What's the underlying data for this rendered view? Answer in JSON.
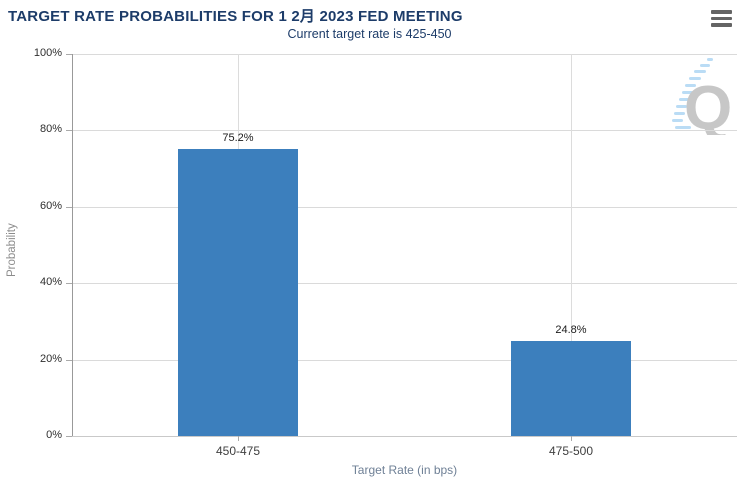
{
  "header": {
    "title": "TARGET RATE PROBABILITIES FOR 1 2月 2023 FED MEETING",
    "subtitle": "Current target rate is 425-450",
    "menu_icon": "hamburger-icon"
  },
  "chart_data": {
    "type": "bar",
    "title": "TARGET RATE PROBABILITIES FOR 1 2月 2023 FED MEETING",
    "subtitle": "Current target rate is 425-450",
    "categories": [
      "450-475",
      "475-500"
    ],
    "values": [
      75.2,
      24.8
    ],
    "value_labels": [
      "75.2%",
      "24.8%"
    ],
    "xlabel": "Target Rate (in bps)",
    "ylabel": "Probability",
    "ylim": [
      0,
      100
    ],
    "yticks": [
      0,
      20,
      40,
      60,
      80,
      100
    ],
    "ytick_suffix": "%",
    "grid": true,
    "legend": "none"
  },
  "watermark": {
    "letter": "Q"
  },
  "colors": {
    "title_navy": "#1d3c69",
    "bar_blue": "#3c7fbd",
    "grid": "#dadada",
    "vertical_grid": "#dcdcdc",
    "left_axis": "#999999",
    "bottom_axis": "#c9c9c9",
    "tick": "#aaaaaa",
    "y_tick_label": "#2f2f2f",
    "category_label": "#3f3f3f",
    "value_label": "#1b1b1b",
    "y_axis_title": "#8c8c8c",
    "x_axis_title": "#6f8096",
    "menu_icon": "#646464",
    "watermark_q": "#c7c7c7",
    "watermark_dash": "#badcf5"
  }
}
